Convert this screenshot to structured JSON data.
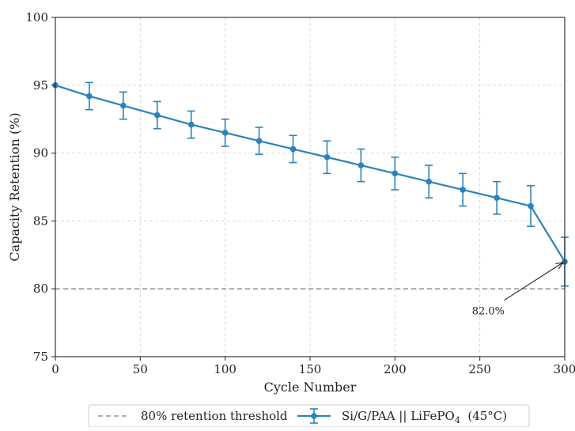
{
  "chart_data": {
    "type": "line",
    "xlabel": "Cycle Number",
    "ylabel": "Capacity Retention (%)",
    "xlim": [
      0,
      300
    ],
    "ylim": [
      75,
      100
    ],
    "x_ticks": [
      0,
      50,
      100,
      150,
      200,
      250,
      300
    ],
    "y_ticks": [
      75,
      80,
      85,
      90,
      95,
      100
    ],
    "grid": true,
    "series": [
      {
        "name": "Si/G/PAA || LiFePO4 (45°C)",
        "color": "#2b83ba",
        "marker": "circle",
        "x": [
          0,
          20,
          40,
          60,
          80,
          100,
          120,
          140,
          160,
          180,
          200,
          220,
          240,
          260,
          280,
          300
        ],
        "y": [
          95.0,
          94.2,
          93.5,
          92.8,
          92.1,
          91.5,
          90.9,
          90.3,
          89.7,
          89.1,
          88.5,
          87.9,
          87.3,
          86.7,
          86.1,
          82.0
        ],
        "error": [
          0,
          1.0,
          1.0,
          1.0,
          1.0,
          1.0,
          1.0,
          1.0,
          1.2,
          1.2,
          1.2,
          1.2,
          1.2,
          1.2,
          1.5,
          1.8
        ]
      }
    ],
    "reference_line": {
      "name": "80% retention threshold",
      "y": 80,
      "style": "dashed",
      "color": "#808080"
    },
    "annotation": {
      "text": "82.0%",
      "x": 300,
      "y": 82.0,
      "text_x": 255,
      "text_y": 78.4
    },
    "legend": {
      "placement": "bottom-center",
      "entries": [
        {
          "label": "80% retention threshold",
          "kind": "dashed-line"
        },
        {
          "label_main": "Si/G/PAA || LiFePO",
          "label_sub": "4",
          "label_tail": "  (45°C)",
          "kind": "line-marker-errorbar"
        }
      ]
    }
  }
}
